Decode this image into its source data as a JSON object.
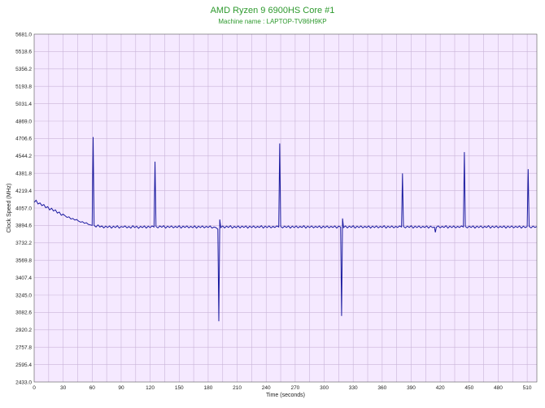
{
  "chart_data": {
    "type": "line",
    "title": "AMD Ryzen 9 6900HS Core #1",
    "subtitle": "Machine name : LAPTOP-TV86H9KP",
    "xlabel": "Time (seconds)",
    "ylabel": "Clock Speed (MHz)",
    "xlim": [
      0,
      520
    ],
    "ylim": [
      2433.0,
      5681.0
    ],
    "xticks": [
      "0",
      "30",
      "60",
      "90",
      "120",
      "150",
      "180",
      "210",
      "240",
      "270",
      "300",
      "330",
      "360",
      "390",
      "420",
      "450",
      "480",
      "510"
    ],
    "yticks": [
      "2433.0",
      "2595.4",
      "2757.8",
      "2920.2",
      "3082.6",
      "3245.0",
      "3407.4",
      "3569.8",
      "3732.2",
      "3894.6",
      "4057.0",
      "4219.4",
      "4381.8",
      "4544.2",
      "4706.6",
      "4869.0",
      "5031.4",
      "5193.8",
      "5356.2",
      "5518.6",
      "5681.0"
    ],
    "grid": true,
    "colors": {
      "line": "#1a1aa0",
      "plot_bg": "#f5e9ff",
      "grid": "#c9b4d8",
      "title": "#2e9a2e"
    },
    "series": [
      {
        "points": [
          [
            0,
            4110
          ],
          [
            2,
            4130
          ],
          [
            4,
            4095
          ],
          [
            6,
            4105
          ],
          [
            8,
            4080
          ],
          [
            10,
            4090
          ],
          [
            12,
            4060
          ],
          [
            14,
            4070
          ],
          [
            16,
            4040
          ],
          [
            18,
            4055
          ],
          [
            20,
            4030
          ],
          [
            22,
            4040
          ],
          [
            24,
            4010
          ],
          [
            26,
            4020
          ],
          [
            28,
            3990
          ],
          [
            30,
            4000
          ],
          [
            32,
            3985
          ],
          [
            34,
            3970
          ],
          [
            36,
            3975
          ],
          [
            38,
            3955
          ],
          [
            40,
            3960
          ],
          [
            42,
            3945
          ],
          [
            44,
            3950
          ],
          [
            46,
            3935
          ],
          [
            48,
            3925
          ],
          [
            50,
            3930
          ],
          [
            52,
            3915
          ],
          [
            54,
            3920
          ],
          [
            56,
            3905
          ],
          [
            58,
            3900
          ],
          [
            60,
            3895
          ],
          [
            61,
            4720
          ],
          [
            62,
            3895
          ],
          [
            64,
            3880
          ],
          [
            66,
            3900
          ],
          [
            68,
            3880
          ],
          [
            70,
            3890
          ],
          [
            72,
            3872
          ],
          [
            74,
            3888
          ],
          [
            76,
            3876
          ],
          [
            78,
            3890
          ],
          [
            80,
            3870
          ],
          [
            82,
            3888
          ],
          [
            84,
            3875
          ],
          [
            86,
            3892
          ],
          [
            88,
            3870
          ],
          [
            90,
            3885
          ],
          [
            92,
            3878
          ],
          [
            94,
            3890
          ],
          [
            96,
            3872
          ],
          [
            98,
            3885
          ],
          [
            100,
            3870
          ],
          [
            102,
            3892
          ],
          [
            104,
            3875
          ],
          [
            106,
            3888
          ],
          [
            108,
            3868
          ],
          [
            110,
            3886
          ],
          [
            112,
            3875
          ],
          [
            114,
            3890
          ],
          [
            116,
            3870
          ],
          [
            118,
            3888
          ],
          [
            120,
            3875
          ],
          [
            122,
            3890
          ],
          [
            124,
            3880
          ],
          [
            125,
            4490
          ],
          [
            126,
            3885
          ],
          [
            128,
            3872
          ],
          [
            130,
            3890
          ],
          [
            132,
            3878
          ],
          [
            134,
            3892
          ],
          [
            136,
            3870
          ],
          [
            138,
            3888
          ],
          [
            140,
            3876
          ],
          [
            142,
            3890
          ],
          [
            144,
            3872
          ],
          [
            146,
            3886
          ],
          [
            148,
            3875
          ],
          [
            150,
            3892
          ],
          [
            152,
            3870
          ],
          [
            154,
            3888
          ],
          [
            156,
            3876
          ],
          [
            158,
            3890
          ],
          [
            160,
            3872
          ],
          [
            162,
            3886
          ],
          [
            164,
            3874
          ],
          [
            166,
            3890
          ],
          [
            168,
            3870
          ],
          [
            170,
            3888
          ],
          [
            172,
            3875
          ],
          [
            174,
            3890
          ],
          [
            176,
            3872
          ],
          [
            178,
            3886
          ],
          [
            180,
            3876
          ],
          [
            182,
            3890
          ],
          [
            184,
            3870
          ],
          [
            186,
            3880
          ],
          [
            188,
            3875
          ],
          [
            190,
            3860
          ],
          [
            191,
            3000
          ],
          [
            192,
            3950
          ],
          [
            193,
            3875
          ],
          [
            195,
            3890
          ],
          [
            197,
            3872
          ],
          [
            199,
            3888
          ],
          [
            201,
            3876
          ],
          [
            203,
            3892
          ],
          [
            205,
            3870
          ],
          [
            207,
            3886
          ],
          [
            209,
            3875
          ],
          [
            211,
            3890
          ],
          [
            213,
            3872
          ],
          [
            215,
            3888
          ],
          [
            217,
            3876
          ],
          [
            219,
            3890
          ],
          [
            221,
            3870
          ],
          [
            223,
            3888
          ],
          [
            225,
            3875
          ],
          [
            227,
            3890
          ],
          [
            229,
            3872
          ],
          [
            231,
            3886
          ],
          [
            233,
            3876
          ],
          [
            235,
            3892
          ],
          [
            237,
            3870
          ],
          [
            239,
            3888
          ],
          [
            241,
            3875
          ],
          [
            243,
            3890
          ],
          [
            245,
            3872
          ],
          [
            247,
            3886
          ],
          [
            249,
            3876
          ],
          [
            251,
            3890
          ],
          [
            253,
            3880
          ],
          [
            254,
            4660
          ],
          [
            255,
            3885
          ],
          [
            257,
            3872
          ],
          [
            259,
            3888
          ],
          [
            261,
            3876
          ],
          [
            263,
            3890
          ],
          [
            265,
            3870
          ],
          [
            267,
            3888
          ],
          [
            269,
            3875
          ],
          [
            271,
            3890
          ],
          [
            273,
            3872
          ],
          [
            275,
            3886
          ],
          [
            277,
            3876
          ],
          [
            279,
            3892
          ],
          [
            281,
            3870
          ],
          [
            283,
            3888
          ],
          [
            285,
            3875
          ],
          [
            287,
            3890
          ],
          [
            289,
            3872
          ],
          [
            291,
            3886
          ],
          [
            293,
            3876
          ],
          [
            295,
            3890
          ],
          [
            297,
            3870
          ],
          [
            299,
            3888
          ],
          [
            301,
            3875
          ],
          [
            303,
            3890
          ],
          [
            305,
            3872
          ],
          [
            307,
            3886
          ],
          [
            309,
            3876
          ],
          [
            311,
            3890
          ],
          [
            313,
            3870
          ],
          [
            315,
            3888
          ],
          [
            317,
            3880
          ],
          [
            318,
            3050
          ],
          [
            319,
            3960
          ],
          [
            320,
            3875
          ],
          [
            322,
            3890
          ],
          [
            324,
            3872
          ],
          [
            326,
            3888
          ],
          [
            328,
            3876
          ],
          [
            330,
            3892
          ],
          [
            332,
            3870
          ],
          [
            334,
            3888
          ],
          [
            336,
            3875
          ],
          [
            338,
            3890
          ],
          [
            340,
            3872
          ],
          [
            342,
            3886
          ],
          [
            344,
            3876
          ],
          [
            346,
            3890
          ],
          [
            348,
            3870
          ],
          [
            350,
            3888
          ],
          [
            352,
            3875
          ],
          [
            354,
            3890
          ],
          [
            356,
            3872
          ],
          [
            358,
            3886
          ],
          [
            360,
            3876
          ],
          [
            362,
            3892
          ],
          [
            364,
            3870
          ],
          [
            366,
            3888
          ],
          [
            368,
            3875
          ],
          [
            370,
            3890
          ],
          [
            372,
            3872
          ],
          [
            374,
            3886
          ],
          [
            376,
            3876
          ],
          [
            378,
            3890
          ],
          [
            380,
            3880
          ],
          [
            381,
            4380
          ],
          [
            382,
            3885
          ],
          [
            384,
            3872
          ],
          [
            386,
            3888
          ],
          [
            388,
            3876
          ],
          [
            390,
            3892
          ],
          [
            392,
            3870
          ],
          [
            394,
            3888
          ],
          [
            396,
            3875
          ],
          [
            398,
            3890
          ],
          [
            400,
            3872
          ],
          [
            402,
            3886
          ],
          [
            404,
            3876
          ],
          [
            406,
            3890
          ],
          [
            408,
            3870
          ],
          [
            410,
            3888
          ],
          [
            412,
            3875
          ],
          [
            414,
            3880
          ],
          [
            415,
            3830
          ],
          [
            416,
            3878
          ],
          [
            418,
            3890
          ],
          [
            420,
            3872
          ],
          [
            422,
            3886
          ],
          [
            424,
            3876
          ],
          [
            426,
            3892
          ],
          [
            428,
            3870
          ],
          [
            430,
            3888
          ],
          [
            432,
            3875
          ],
          [
            434,
            3890
          ],
          [
            436,
            3872
          ],
          [
            438,
            3886
          ],
          [
            440,
            3876
          ],
          [
            442,
            3890
          ],
          [
            444,
            3880
          ],
          [
            445,
            4580
          ],
          [
            446,
            3885
          ],
          [
            448,
            3872
          ],
          [
            450,
            3888
          ],
          [
            452,
            3876
          ],
          [
            454,
            3890
          ],
          [
            456,
            3870
          ],
          [
            458,
            3888
          ],
          [
            460,
            3875
          ],
          [
            462,
            3890
          ],
          [
            464,
            3872
          ],
          [
            466,
            3886
          ],
          [
            468,
            3876
          ],
          [
            470,
            3892
          ],
          [
            472,
            3870
          ],
          [
            474,
            3888
          ],
          [
            476,
            3875
          ],
          [
            478,
            3890
          ],
          [
            480,
            3872
          ],
          [
            482,
            3886
          ],
          [
            484,
            3876
          ],
          [
            486,
            3890
          ],
          [
            488,
            3870
          ],
          [
            490,
            3888
          ],
          [
            492,
            3875
          ],
          [
            494,
            3890
          ],
          [
            496,
            3872
          ],
          [
            498,
            3886
          ],
          [
            500,
            3876
          ],
          [
            502,
            3890
          ],
          [
            504,
            3870
          ],
          [
            506,
            3888
          ],
          [
            508,
            3875
          ],
          [
            510,
            3885
          ],
          [
            511,
            4420
          ],
          [
            512,
            3885
          ],
          [
            514,
            3872
          ],
          [
            516,
            3888
          ],
          [
            518,
            3876
          ],
          [
            520,
            3885
          ]
        ]
      }
    ]
  }
}
